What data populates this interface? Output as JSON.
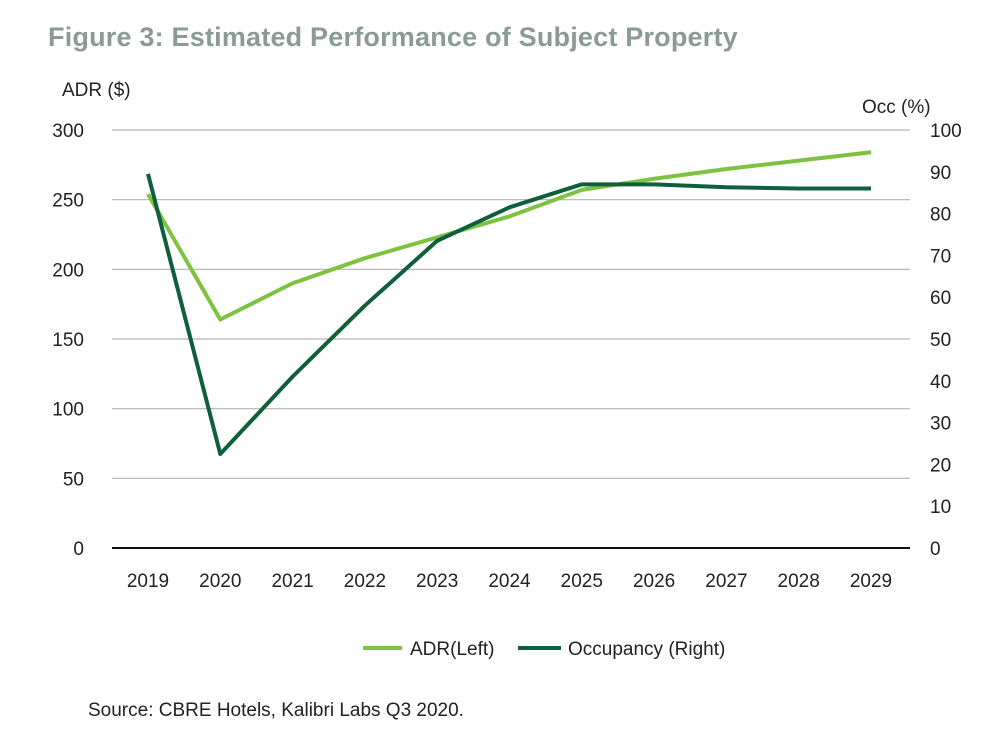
{
  "title": "Figure 3: Estimated Performance of Subject Property",
  "source": "Source: CBRE Hotels, Kalibri Labs Q3 2020.",
  "colors": {
    "adr": "#7dc240",
    "occupancy": "#0f5f3c",
    "grid": "#b3b3b3",
    "axis": "#111111"
  },
  "chart_data": {
    "type": "line",
    "x": [
      "2019",
      "2020",
      "2021",
      "2022",
      "2023",
      "2024",
      "2025",
      "2026",
      "2027",
      "2028",
      "2029"
    ],
    "y_left": {
      "label": "ADR ($)",
      "lim": [
        0,
        300
      ],
      "ticks": [
        "0",
        "50",
        "100",
        "150",
        "200",
        "250",
        "300"
      ]
    },
    "y_right": {
      "label": "Occ (%)",
      "lim": [
        0,
        100
      ],
      "ticks": [
        "0",
        "10",
        "20",
        "30",
        "40",
        "50",
        "60",
        "70",
        "80",
        "90",
        "100"
      ]
    },
    "grid": true,
    "legend_position": "bottom",
    "series": [
      {
        "name": "ADR(Left)",
        "axis": "left",
        "values": [
          254,
          164,
          190,
          208,
          223,
          238,
          257,
          265,
          272,
          278,
          284
        ]
      },
      {
        "name": "Occupancy (Right)",
        "axis": "right",
        "values": [
          89.5,
          22.5,
          41,
          58,
          73.5,
          81.5,
          87,
          87,
          86.3,
          86,
          86
        ]
      }
    ]
  }
}
